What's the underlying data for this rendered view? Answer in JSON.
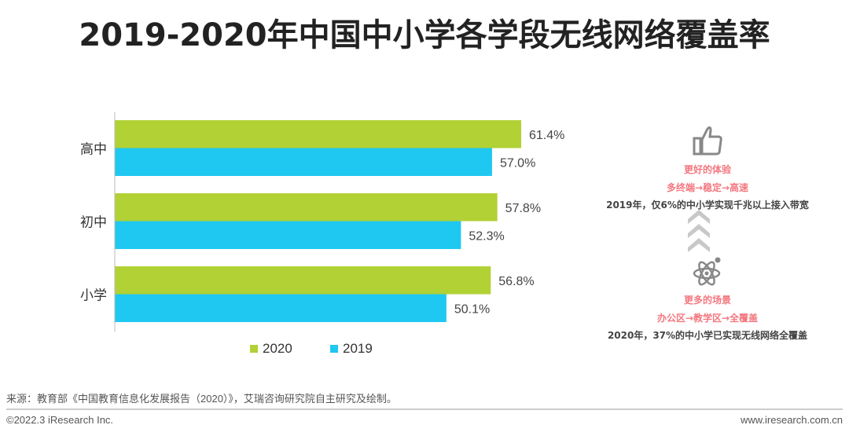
{
  "title": "2019-2020年中国中小学各学段无线网络覆盖率",
  "chart_data": {
    "type": "bar",
    "orientation": "horizontal",
    "title": "2019-2020年中国中小学各学段无线网络覆盖率",
    "categories": [
      "高中",
      "初中",
      "小学"
    ],
    "series": [
      {
        "name": "2020",
        "color": "#b1d135",
        "values": [
          61.4,
          57.8,
          56.8
        ],
        "labels": [
          "61.4%",
          "57.8%",
          "56.8%"
        ]
      },
      {
        "name": "2019",
        "color": "#1fc8f0",
        "values": [
          57.0,
          52.3,
          50.1
        ],
        "labels": [
          "57.0%",
          "52.3%",
          "50.1%"
        ]
      }
    ],
    "legend_position": "bottom",
    "grid": false
  },
  "side_panel": {
    "top_icon": "thumbs-up-icon",
    "top_heading": "更好的体验",
    "top_sub": "多终端→稳定→高速",
    "top_note": "2019年，仅6%的中小学实现千兆以上接入带宽",
    "arrow_icon": "chevrons-up-icon",
    "bottom_icon": "atom-icon",
    "bottom_heading": "更多的场景",
    "bottom_sub": "办公区→教学区→全覆盖",
    "bottom_note": "2020年，37%的中小学已实现无线网络全覆盖"
  },
  "footer": {
    "source": "来源：教育部《中国教育信息化发展报告（2020）》，艾瑞咨询研究院自主研究及绘制。",
    "copyright": "©2022.3 iResearch Inc.",
    "website": "www.iresearch.com.cn"
  }
}
